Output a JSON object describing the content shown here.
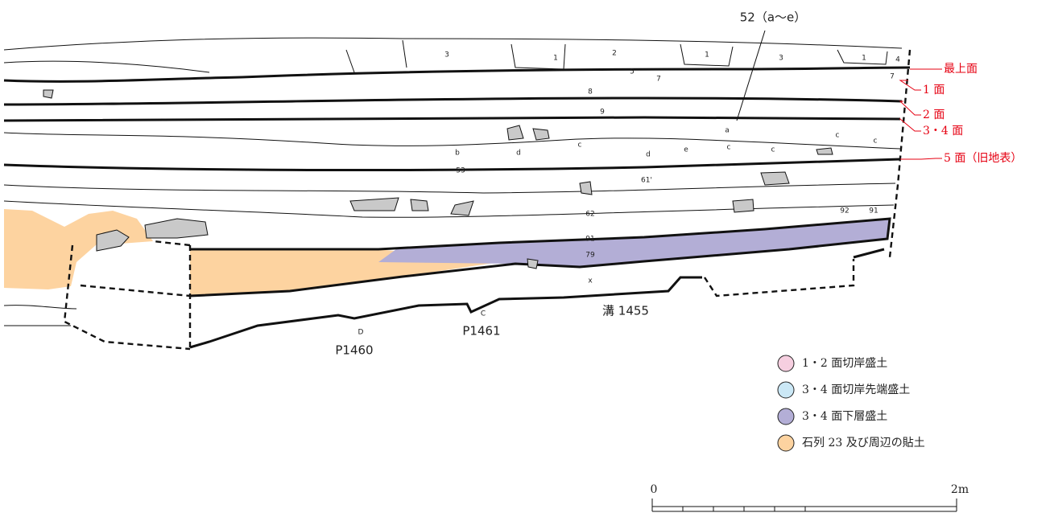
{
  "title_label": "52（a～e）",
  "layer_labels": [
    "3",
    "1",
    "2",
    "1",
    "3",
    "1",
    "4",
    "5",
    "7",
    "7",
    "8",
    "9",
    "a",
    "c",
    "c",
    "c",
    "b",
    "d",
    "c",
    "d",
    "e",
    "c",
    "53",
    "61'",
    "62",
    "92",
    "91",
    "91",
    "79",
    "x"
  ],
  "features": [
    "溝 1455",
    "C",
    "P1461",
    "D",
    "P1460"
  ],
  "surfaces": [
    "最上面",
    "1 面",
    "2 面",
    "3・4 面",
    "5 面（旧地表）"
  ],
  "legend": [
    {
      "label": "1・2 面切岸盛土",
      "color": "#f6cfe0"
    },
    {
      "label": "3・4 面切岸先端盛土",
      "color": "#cbe8f6"
    },
    {
      "label": "3・4 面下層盛土",
      "color": "#b3aed6"
    },
    {
      "label": "石列 23 及び周辺の貼土",
      "color": "#fdd3a0"
    }
  ],
  "scale": {
    "start": "0",
    "end": "2m"
  }
}
